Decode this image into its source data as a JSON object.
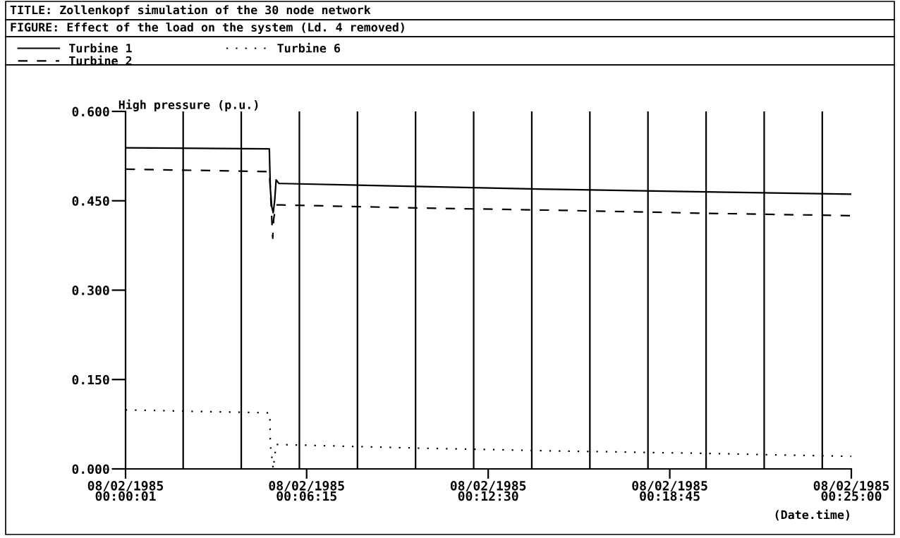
{
  "chart_data": {
    "type": "line",
    "title": "TITLE: Zollenkopf simulation of the 30 node network",
    "subtitle": "FIGURE: Effect of the load on the system (Ld. 4 removed)",
    "ylabel": "High pressure (p.u.)",
    "xlabel": "(Date.time)",
    "xlim": [
      "1985-08-02T00:00:01",
      "1985-08-02T00:25:00"
    ],
    "xticks": [
      {
        "value": "1985-08-02T00:00:01",
        "label": "08/02/1985\n00:00:01"
      },
      {
        "value": "1985-08-02T00:06:15",
        "label": "08/02/1985\n00:06:15"
      },
      {
        "value": "1985-08-02T00:12:30",
        "label": "08/02/1985\n00:12:30"
      },
      {
        "value": "1985-08-02T00:18:45",
        "label": "08/02/1985\n00:18:45"
      },
      {
        "value": "1985-08-02T00:25:00",
        "label": "08/02/1985\n00:25:00"
      }
    ],
    "ylim": [
      0,
      0.6
    ],
    "yticks": [
      {
        "value": 0,
        "label": "0.000"
      },
      {
        "value": 0.15,
        "label": "0.150"
      },
      {
        "value": 0.3,
        "label": "0.300"
      },
      {
        "value": 0.45,
        "label": "0.450"
      },
      {
        "value": 0.6,
        "label": "0.600"
      }
    ],
    "ref_lines": [
      {
        "axis": "x",
        "value": "1985-08-02T00:02:00"
      },
      {
        "axis": "x",
        "value": "1985-08-02T00:04:00"
      },
      {
        "axis": "x",
        "value": "1985-08-02T00:06:00"
      },
      {
        "axis": "x",
        "value": "1985-08-02T00:08:00"
      },
      {
        "axis": "x",
        "value": "1985-08-02T00:10:00"
      },
      {
        "axis": "x",
        "value": "1985-08-02T00:12:00"
      },
      {
        "axis": "x",
        "value": "1985-08-02T00:14:00"
      },
      {
        "axis": "x",
        "value": "1985-08-02T00:16:00"
      },
      {
        "axis": "x",
        "value": "1985-08-02T00:18:00"
      },
      {
        "axis": "x",
        "value": "1985-08-02T00:20:00"
      },
      {
        "axis": "x",
        "value": "1985-08-02T00:22:00"
      },
      {
        "axis": "x",
        "value": "1985-08-02T00:24:00"
      }
    ],
    "legend": "top",
    "series": [
      {
        "name": "Turbine 1",
        "color": "#000000",
        "line_style": "solid",
        "x": [
          "1985-08-02T00:00:01",
          "1985-08-02T00:04:58",
          "1985-08-02T00:05:00",
          "1985-08-02T00:05:03",
          "1985-08-02T00:05:06",
          "1985-08-02T00:05:09",
          "1985-08-02T00:05:12",
          "1985-08-02T00:05:18",
          "1985-08-02T00:05:24",
          "1985-08-02T00:10:00",
          "1985-08-02T00:15:00",
          "1985-08-02T00:20:00",
          "1985-08-02T00:25:00"
        ],
        "values": [
          0.539,
          0.537,
          0.47,
          0.44,
          0.43,
          0.45,
          0.485,
          0.479,
          0.479,
          0.474,
          0.469,
          0.465,
          0.461
        ]
      },
      {
        "name": "Turbine 2",
        "color": "#000000",
        "line_style": "dashed",
        "x": [
          "1985-08-02T00:00:01",
          "1985-08-02T00:04:58",
          "1985-08-02T00:05:00",
          "1985-08-02T00:05:03",
          "1985-08-02T00:05:05",
          "1985-08-02T00:05:07",
          "1985-08-02T00:05:12",
          "1985-08-02T00:05:24",
          "1985-08-02T00:10:00",
          "1985-08-02T00:15:00",
          "1985-08-02T00:20:00",
          "1985-08-02T00:25:00"
        ],
        "values": [
          0.503,
          0.499,
          0.47,
          0.42,
          0.387,
          0.42,
          0.443,
          0.443,
          0.438,
          0.434,
          0.429,
          0.425
        ]
      },
      {
        "name": "Turbine 6",
        "color": "#000000",
        "line_style": "dotted",
        "x": [
          "1985-08-02T00:00:01",
          "1985-08-02T00:04:59",
          "1985-08-02T00:05:00",
          "1985-08-02T00:05:06",
          "1985-08-02T00:05:12",
          "1985-08-02T00:10:00",
          "1985-08-02T00:15:00",
          "1985-08-02T00:20:00",
          "1985-08-02T00:25:00"
        ],
        "values": [
          0.099,
          0.094,
          0.041,
          0.0,
          0.041,
          0.035,
          0.03,
          0.026,
          0.021
        ]
      }
    ]
  }
}
